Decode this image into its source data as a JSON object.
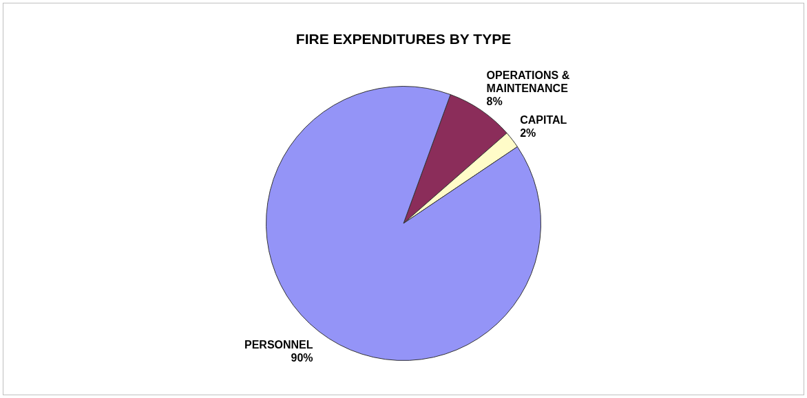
{
  "chart_data": {
    "type": "pie",
    "title": "FIRE EXPENDITURES BY TYPE",
    "categories": [
      "OPERATIONS & MAINTENANCE",
      "CAPITAL",
      "PERSONNEL"
    ],
    "values": [
      8,
      2,
      90
    ],
    "colors": [
      "#8b2d5a",
      "#fffcc8",
      "#9494f7"
    ],
    "value_labels": [
      "8%",
      "2%",
      "90%"
    ],
    "legend": false
  }
}
